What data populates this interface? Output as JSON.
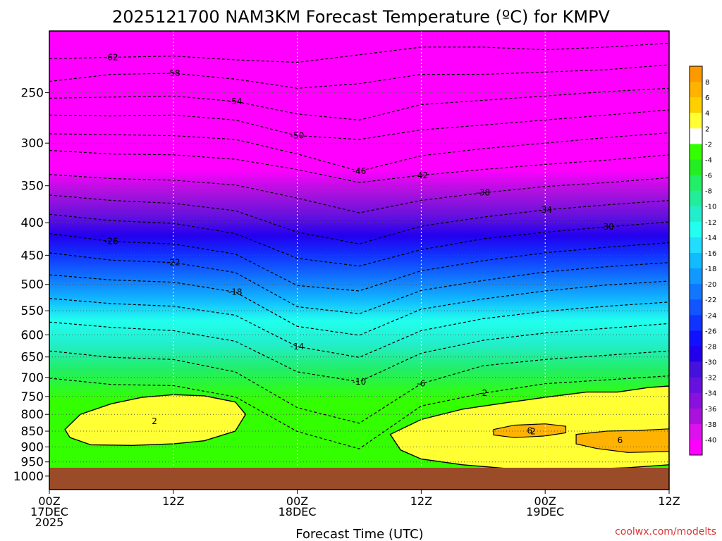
{
  "chart_data": {
    "type": "heatmap",
    "title": "2025121700 NAM3KM Forecast Temperature (ºC) for KMPV",
    "xlabel": "Forecast Time (UTC)",
    "ylabel": "",
    "credit": "coolwx.com/modelts",
    "x_range_hours": [
      0,
      60
    ],
    "y_range_hpa": [
      200,
      1050
    ],
    "y_scale": "log",
    "x_ticks": [
      {
        "hour": 0,
        "label": "00Z",
        "line2": "17DEC",
        "line3": "2025"
      },
      {
        "hour": 12,
        "label": "12Z",
        "line2": "",
        "line3": ""
      },
      {
        "hour": 24,
        "label": "00Z",
        "line2": "18DEC",
        "line3": ""
      },
      {
        "hour": 36,
        "label": "12Z",
        "line2": "",
        "line3": ""
      },
      {
        "hour": 48,
        "label": "00Z",
        "line2": "19DEC",
        "line3": ""
      },
      {
        "hour": 60,
        "label": "12Z",
        "line2": "",
        "line3": ""
      }
    ],
    "y_ticks": [
      250,
      300,
      350,
      400,
      450,
      500,
      550,
      600,
      650,
      700,
      750,
      800,
      850,
      900,
      950,
      1000
    ],
    "grid": true,
    "colorbar": {
      "placement": "right",
      "labels": [
        "8",
        "6",
        "4",
        "2",
        "-2",
        "-4",
        "-6",
        "-8",
        "-10",
        "-12",
        "-14",
        "-16",
        "-18",
        "-20",
        "-22",
        "-24",
        "-26",
        "-28",
        "-30",
        "-32",
        "-34",
        "-36",
        "-38",
        "-40"
      ],
      "colors": [
        "#ff9900",
        "#ffb300",
        "#ffd000",
        "#ffff33",
        "#ffffff",
        "#33ff00",
        "#22ee22",
        "#22ee66",
        "#22ee99",
        "#22eecc",
        "#22ffee",
        "#22ddff",
        "#11bbff",
        "#1199ff",
        "#1177ff",
        "#1155ff",
        "#1133ff",
        "#1111ff",
        "#2200ee",
        "#4411dd",
        "#6611dd",
        "#8811dd",
        "#aa11dd",
        "#dd11ee",
        "#ff00ff"
      ]
    },
    "ground_color": "#9a4b27",
    "contour_series": [
      {
        "name": "-62",
        "values": [
          [
            0,
            221
          ],
          [
            6,
            220
          ],
          [
            12,
            219
          ],
          [
            18,
            222
          ],
          [
            24,
            224
          ],
          [
            30,
            218
          ],
          [
            36,
            212
          ],
          [
            42,
            212
          ],
          [
            48,
            214
          ],
          [
            54,
            212
          ],
          [
            60,
            209
          ]
        ]
      },
      {
        "name": "-58",
        "values": [
          [
            0,
            240
          ],
          [
            6,
            234
          ],
          [
            12,
            233
          ],
          [
            18,
            238
          ],
          [
            24,
            246
          ],
          [
            30,
            242
          ],
          [
            36,
            234
          ],
          [
            42,
            234
          ],
          [
            48,
            232
          ],
          [
            54,
            230
          ],
          [
            60,
            226
          ]
        ]
      },
      {
        "name": "-54",
        "values": [
          [
            0,
            255
          ],
          [
            6,
            254
          ],
          [
            12,
            253
          ],
          [
            18,
            258
          ],
          [
            24,
            270
          ],
          [
            30,
            276
          ],
          [
            36,
            261
          ],
          [
            42,
            257
          ],
          [
            48,
            253
          ],
          [
            54,
            249
          ],
          [
            60,
            246
          ]
        ]
      },
      {
        "name": "-50",
        "values": [
          [
            0,
            271
          ],
          [
            6,
            272
          ],
          [
            12,
            271
          ],
          [
            18,
            276
          ],
          [
            24,
            292
          ],
          [
            30,
            296
          ],
          [
            36,
            286
          ],
          [
            42,
            281
          ],
          [
            48,
            276
          ],
          [
            54,
            271
          ],
          [
            60,
            266
          ]
        ]
      },
      {
        "name": "-46",
        "values": [
          [
            0,
            290
          ],
          [
            6,
            291
          ],
          [
            12,
            292
          ],
          [
            18,
            296
          ],
          [
            24,
            312
          ],
          [
            30,
            332
          ],
          [
            36,
            314
          ],
          [
            42,
            306
          ],
          [
            48,
            300
          ],
          [
            54,
            294
          ],
          [
            60,
            289
          ]
        ]
      },
      {
        "name": "-42",
        "values": [
          [
            0,
            308
          ],
          [
            6,
            312
          ],
          [
            12,
            313
          ],
          [
            18,
            318
          ],
          [
            24,
            330
          ],
          [
            30,
            346
          ],
          [
            36,
            337
          ],
          [
            42,
            330
          ],
          [
            48,
            324
          ],
          [
            54,
            319
          ],
          [
            60,
            313
          ]
        ]
      },
      {
        "name": "-38",
        "values": [
          [
            0,
            336
          ],
          [
            6,
            341
          ],
          [
            12,
            343
          ],
          [
            18,
            349
          ],
          [
            24,
            366
          ],
          [
            30,
            386
          ],
          [
            36,
            369
          ],
          [
            42,
            359
          ],
          [
            48,
            351
          ],
          [
            54,
            346
          ],
          [
            60,
            340
          ]
        ]
      },
      {
        "name": "-34",
        "values": [
          [
            0,
            362
          ],
          [
            6,
            369
          ],
          [
            12,
            373
          ],
          [
            18,
            383
          ],
          [
            24,
            414
          ],
          [
            30,
            432
          ],
          [
            36,
            405
          ],
          [
            42,
            392
          ],
          [
            48,
            382
          ],
          [
            54,
            375
          ],
          [
            60,
            369
          ]
        ]
      },
      {
        "name": "-30",
        "values": [
          [
            0,
            388
          ],
          [
            6,
            397
          ],
          [
            12,
            401
          ],
          [
            18,
            416
          ],
          [
            24,
            455
          ],
          [
            30,
            468
          ],
          [
            36,
            441
          ],
          [
            42,
            424
          ],
          [
            48,
            414
          ],
          [
            54,
            406
          ],
          [
            60,
            399
          ]
        ]
      },
      {
        "name": "-26",
        "values": [
          [
            0,
            416
          ],
          [
            6,
            428
          ],
          [
            12,
            432
          ],
          [
            18,
            448
          ],
          [
            24,
            502
          ],
          [
            30,
            512
          ],
          [
            36,
            476
          ],
          [
            42,
            459
          ],
          [
            48,
            446
          ],
          [
            54,
            437
          ],
          [
            60,
            430
          ]
        ]
      },
      {
        "name": "-22",
        "values": [
          [
            0,
            446
          ],
          [
            6,
            458
          ],
          [
            12,
            462
          ],
          [
            18,
            479
          ],
          [
            24,
            542
          ],
          [
            30,
            556
          ],
          [
            36,
            511
          ],
          [
            42,
            493
          ],
          [
            48,
            478
          ],
          [
            54,
            469
          ],
          [
            60,
            462
          ]
        ]
      },
      {
        "name": "-18",
        "values": [
          [
            0,
            483
          ],
          [
            6,
            492
          ],
          [
            12,
            496
          ],
          [
            18,
            514
          ],
          [
            24,
            582
          ],
          [
            30,
            601
          ],
          [
            36,
            547
          ],
          [
            42,
            527
          ],
          [
            48,
            512
          ],
          [
            54,
            501
          ],
          [
            60,
            494
          ]
        ]
      },
      {
        "name": "-14",
        "values": [
          [
            0,
            526
          ],
          [
            6,
            536
          ],
          [
            12,
            541
          ],
          [
            18,
            559
          ],
          [
            24,
            626
          ],
          [
            30,
            651
          ],
          [
            36,
            591
          ],
          [
            42,
            566
          ],
          [
            48,
            551
          ],
          [
            54,
            541
          ],
          [
            60,
            533
          ]
        ]
      },
      {
        "name": "-10",
        "values": [
          [
            0,
            573
          ],
          [
            6,
            584
          ],
          [
            12,
            591
          ],
          [
            18,
            614
          ],
          [
            24,
            686
          ],
          [
            30,
            711
          ],
          [
            36,
            641
          ],
          [
            42,
            612
          ],
          [
            48,
            596
          ],
          [
            54,
            586
          ],
          [
            60,
            576
          ]
        ]
      },
      {
        "name": "-6",
        "values": [
          [
            0,
            636
          ],
          [
            6,
            651
          ],
          [
            12,
            656
          ],
          [
            18,
            686
          ],
          [
            24,
            781
          ],
          [
            30,
            826
          ],
          [
            36,
            716
          ],
          [
            42,
            671
          ],
          [
            48,
            656
          ],
          [
            54,
            646
          ],
          [
            60,
            636
          ]
        ]
      },
      {
        "name": "-2",
        "values": [
          [
            0,
            702
          ],
          [
            6,
            718
          ],
          [
            12,
            721
          ],
          [
            18,
            751
          ],
          [
            24,
            851
          ],
          [
            30,
            906
          ],
          [
            36,
            776
          ],
          [
            42,
            741
          ],
          [
            48,
            716
          ],
          [
            54,
            706
          ],
          [
            60,
            696
          ]
        ]
      }
    ],
    "warm_layers": [
      {
        "name": "2",
        "area": [
          [
            1.5,
            845
          ],
          [
            3,
            800
          ],
          [
            6,
            770
          ],
          [
            9,
            752
          ],
          [
            12,
            745
          ],
          [
            15,
            748
          ],
          [
            18,
            765
          ],
          [
            19,
            800
          ],
          [
            18,
            850
          ],
          [
            15,
            880
          ],
          [
            12,
            890
          ],
          [
            8,
            895
          ],
          [
            4,
            893
          ],
          [
            2,
            870
          ]
        ]
      },
      {
        "name": "2",
        "area": [
          [
            33,
            860
          ],
          [
            36,
            815
          ],
          [
            40,
            785
          ],
          [
            44,
            768
          ],
          [
            48,
            752
          ],
          [
            52,
            738
          ],
          [
            55,
            738
          ],
          [
            58,
            726
          ],
          [
            60,
            722
          ],
          [
            60,
            960
          ],
          [
            56,
            970
          ],
          [
            52,
            975
          ],
          [
            48,
            975
          ],
          [
            44,
            972
          ],
          [
            40,
            960
          ],
          [
            36,
            940
          ],
          [
            34,
            910
          ]
        ]
      },
      {
        "name": "6",
        "area": [
          [
            43,
            845
          ],
          [
            45,
            832
          ],
          [
            48,
            828
          ],
          [
            50,
            835
          ],
          [
            50,
            855
          ],
          [
            48,
            865
          ],
          [
            45,
            870
          ],
          [
            43,
            862
          ]
        ]
      },
      {
        "name": "6",
        "area": [
          [
            51,
            860
          ],
          [
            54,
            850
          ],
          [
            57,
            848
          ],
          [
            60,
            843
          ],
          [
            60,
            915
          ],
          [
            56,
            918
          ],
          [
            53,
            905
          ],
          [
            51,
            890
          ]
        ]
      }
    ],
    "contour_labels": [
      "-62",
      "-58",
      "-54",
      "-50",
      "-46",
      "-42",
      "-38",
      "-34",
      "-30",
      "-26",
      "-22",
      "-18",
      "-14",
      "-10",
      "-6",
      "-2",
      "2",
      "6"
    ]
  }
}
